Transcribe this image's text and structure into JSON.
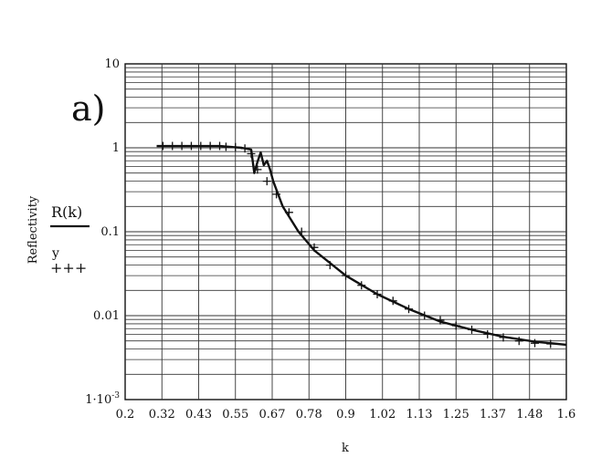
{
  "chart_data": {
    "type": "line",
    "panel_label": "a)",
    "xlabel": "k",
    "ylabel": "Reflectivity",
    "xlim": [
      0.2,
      1.6
    ],
    "ylim": [
      0.001,
      10
    ],
    "yscale": "log",
    "grid": true,
    "x_tick_labels": [
      "0.2",
      "0.32",
      "0.43",
      "0.55",
      "0.67",
      "0.78",
      "0.9",
      "1.02",
      "1.13",
      "1.25",
      "1.37",
      "1.48",
      "1.6"
    ],
    "y_tick_labels": [
      {
        "value": 10,
        "base": "10",
        "sup": ""
      },
      {
        "value": 1,
        "base": "1",
        "sup": ""
      },
      {
        "value": 0.1,
        "base": "0.1",
        "sup": ""
      },
      {
        "value": 0.01,
        "base": "0.01",
        "sup": ""
      },
      {
        "value": 0.001,
        "base": "1·10",
        "sup": "-3"
      }
    ],
    "legend": {
      "placement": "left",
      "entries": [
        {
          "label": "R(k)",
          "marker": "line"
        },
        {
          "label": "y",
          "marker": "+++"
        }
      ]
    },
    "series": [
      {
        "name": "R(k)",
        "style": "line",
        "x": [
          0.3,
          0.4,
          0.5,
          0.57,
          0.6,
          0.61,
          0.62,
          0.63,
          0.64,
          0.65,
          0.66,
          0.67,
          0.7,
          0.75,
          0.8,
          0.9,
          1.0,
          1.1,
          1.2,
          1.3,
          1.4,
          1.5,
          1.6
        ],
        "y": [
          1.05,
          1.05,
          1.05,
          1.0,
          0.95,
          0.5,
          0.68,
          0.88,
          0.62,
          0.7,
          0.55,
          0.4,
          0.2,
          0.1,
          0.06,
          0.03,
          0.018,
          0.012,
          0.0085,
          0.0068,
          0.0056,
          0.0049,
          0.0045
        ]
      },
      {
        "name": "y",
        "style": "cross",
        "x": [
          0.32,
          0.35,
          0.38,
          0.41,
          0.44,
          0.47,
          0.5,
          0.52,
          0.55,
          0.58,
          0.6,
          0.62,
          0.65,
          0.68,
          0.72,
          0.76,
          0.8,
          0.85,
          0.9,
          0.95,
          1.0,
          1.05,
          1.1,
          1.15,
          1.2,
          1.25,
          1.3,
          1.35,
          1.4,
          1.45,
          1.5,
          1.55
        ],
        "y": [
          1.05,
          1.05,
          1.05,
          1.05,
          1.05,
          1.05,
          1.05,
          1.03,
          1.02,
          0.98,
          0.85,
          0.55,
          0.4,
          0.28,
          0.17,
          0.1,
          0.065,
          0.04,
          0.03,
          0.023,
          0.018,
          0.015,
          0.012,
          0.01,
          0.0088,
          0.0076,
          0.0068,
          0.006,
          0.0055,
          0.005,
          0.0047,
          0.0046
        ]
      }
    ]
  }
}
